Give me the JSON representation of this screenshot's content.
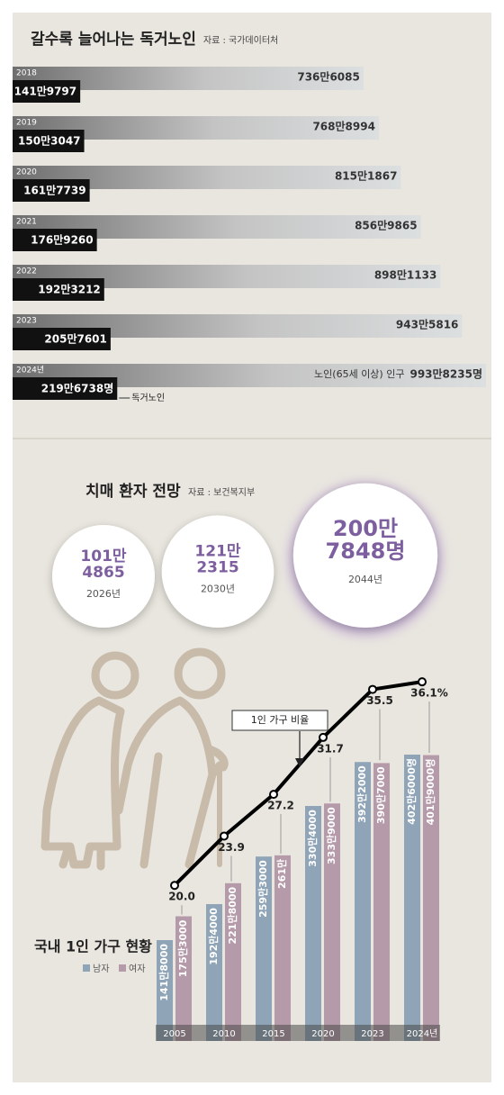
{
  "chart_data": [
    {
      "type": "hbar",
      "title": "갈수록 늘어나는 독거노인",
      "source": "자료 : 국가데이터처",
      "categories": [
        "2018",
        "2019",
        "2020",
        "2021",
        "2022",
        "2023",
        "2024년"
      ],
      "series": [
        {
          "name": "노인(65세 이상) 인구",
          "color": "#7a7a7a",
          "values": [
            7366085,
            7688994,
            8151867,
            8569865,
            8981133,
            9435816,
            9938235
          ],
          "value_labels": [
            "736만6085",
            "768만8994",
            "815만1867",
            "856만9865",
            "898만1133",
            "943만5816",
            "993만8235명"
          ]
        },
        {
          "name": "독거노인",
          "color": "#111111",
          "values": [
            1419797,
            1503047,
            1617739,
            1769260,
            1923212,
            2057601,
            2196738
          ],
          "value_labels": [
            "141만9797",
            "150만3047",
            "161만7739",
            "176만9260",
            "192만3212",
            "205만7601",
            "219만6738명"
          ]
        }
      ]
    },
    {
      "type": "bubble",
      "title": "치매 환자 전망",
      "source": "자료 : 보건복지부",
      "color": "#7d5fa0",
      "categories": [
        "2026년",
        "2030년",
        "2044년"
      ],
      "values": [
        1014865,
        1212315,
        2007848
      ],
      "value_labels": [
        [
          "101만",
          "4865"
        ],
        [
          "121만",
          "2315"
        ],
        [
          "200만",
          "7848명"
        ]
      ]
    },
    {
      "type": "bar_line",
      "title": "국내 1인 가구 현황",
      "categories": [
        "2005",
        "2010",
        "2015",
        "2020",
        "2023",
        "2024년"
      ],
      "series": [
        {
          "name": "남자",
          "color": "#8fa5b7",
          "values": [
            1418000,
            1924000,
            2593000,
            3304000,
            3922000,
            4026000
          ],
          "value_labels": [
            "141만8000",
            "192만4000",
            "259만3000",
            "330만4000",
            "392만2000",
            "402만6000명"
          ]
        },
        {
          "name": "여자",
          "color": "#b59aa9",
          "values": [
            1753000,
            2218000,
            2610000,
            3339000,
            3907000,
            4019000
          ],
          "value_labels": [
            "175만3000",
            "221만8000",
            "261만",
            "333만9000",
            "390만7000",
            "401만9000명"
          ]
        },
        {
          "name": "1인 가구 비율",
          "type": "line",
          "color": "#000000",
          "values": [
            20.0,
            23.9,
            27.2,
            31.7,
            35.5,
            36.1
          ],
          "value_labels": [
            "20.0",
            "23.9",
            "27.2",
            "31.7",
            "35.5",
            "36.1%"
          ]
        }
      ]
    }
  ]
}
